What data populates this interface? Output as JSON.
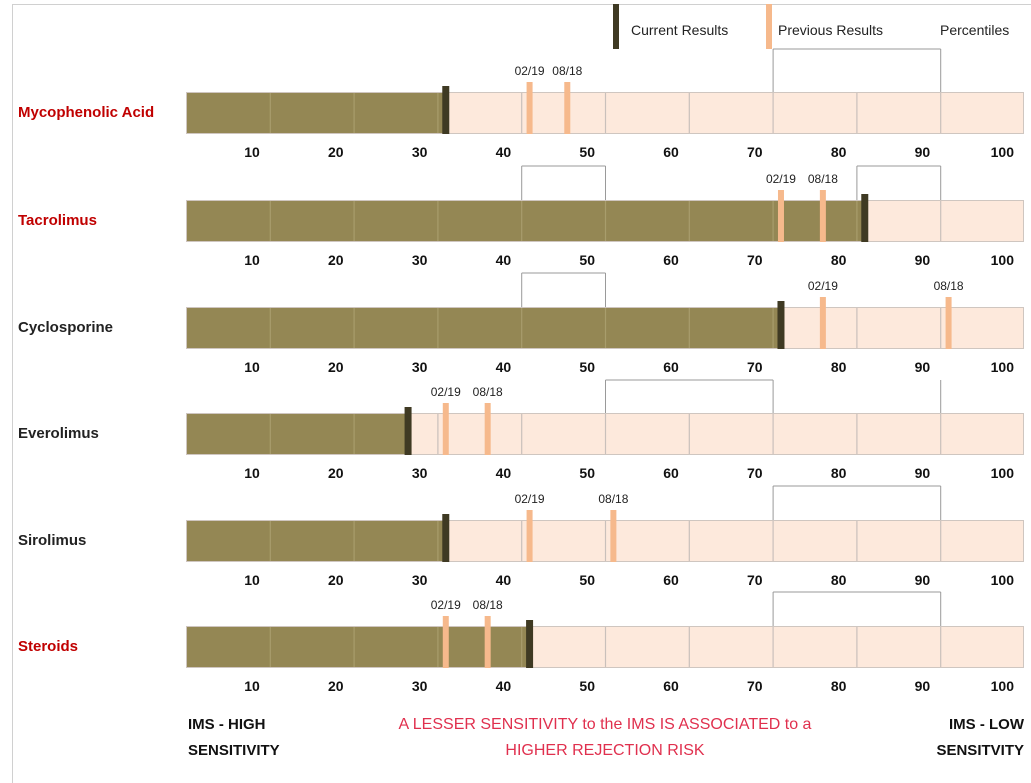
{
  "legend": {
    "current_label": "Current Results",
    "previous_label": "Previous Results",
    "percentiles_label": "Percentiles"
  },
  "colors": {
    "filled": "#948754",
    "unfilled": "#fde9dc",
    "current_marker": "#3f3a23",
    "previous_marker": "#f6b98c",
    "label_red": "#c00000",
    "label_dark": "#222222",
    "footer_red": "#e0304e"
  },
  "footer": {
    "left_line1": "IMS - HIGH",
    "left_line2": "SENSITIVITY",
    "center_line1": "A LESSER SENSITIVITY to the IMS IS ASSOCIATED to a",
    "center_line2": "HIGHER REJECTION RISK",
    "right_line1": "IMS - LOW",
    "right_line2": "SENSITVITY"
  },
  "chart_data": {
    "type": "bar",
    "xlim": [
      0,
      100
    ],
    "ticks": [
      10,
      20,
      30,
      40,
      50,
      60,
      70,
      80,
      90,
      100
    ],
    "tick_labels": [
      "10",
      "20",
      "30",
      "40",
      "50",
      "60",
      "70",
      "80",
      "90",
      "100"
    ],
    "rows": [
      {
        "name": "Mycophenolic Acid",
        "label_color": "red",
        "current": 31,
        "previous": [
          {
            "label": "02/19",
            "value": 41
          },
          {
            "label": "08/18",
            "value": 45.5
          }
        ]
      },
      {
        "name": "Tacrolimus",
        "label_color": "red",
        "current": 81,
        "previous": [
          {
            "label": "02/19",
            "value": 71
          },
          {
            "label": "08/18",
            "value": 76
          }
        ]
      },
      {
        "name": "Cyclosporine",
        "label_color": "dark",
        "current": 71,
        "previous": [
          {
            "label": "02/19",
            "value": 76
          },
          {
            "label": "08/18",
            "value": 91
          }
        ]
      },
      {
        "name": "Everolimus",
        "label_color": "dark",
        "current": 26.5,
        "previous": [
          {
            "label": "02/19",
            "value": 31
          },
          {
            "label": "08/18",
            "value": 36
          }
        ]
      },
      {
        "name": "Sirolimus",
        "label_color": "dark",
        "current": 31,
        "previous": [
          {
            "label": "02/19",
            "value": 41
          },
          {
            "label": "08/18",
            "value": 51
          }
        ]
      },
      {
        "name": "Steroids",
        "label_color": "red",
        "current": 41,
        "previous": [
          {
            "label": "02/19",
            "value": 31
          },
          {
            "label": "08/18",
            "value": 36
          }
        ]
      }
    ]
  }
}
